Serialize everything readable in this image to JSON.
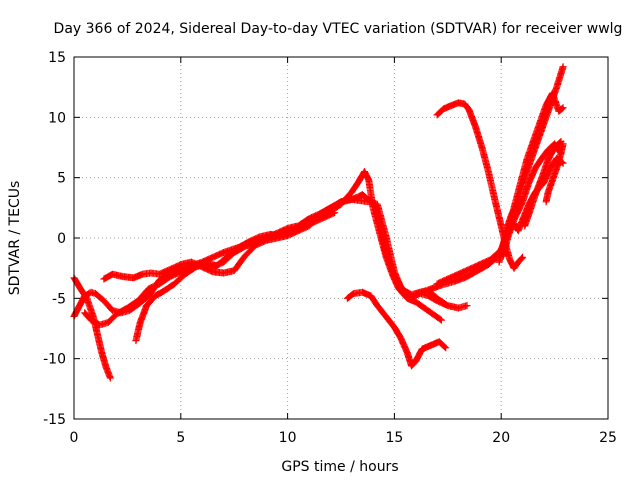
{
  "chart_data": {
    "type": "scatter",
    "title": "Day 366 of 2024, Sidereal Day-to-day VTEC variation (SDTVAR) for receiver wwlg",
    "xlabel": "GPS time / hours",
    "ylabel": "SDTVAR / TECUs",
    "xlim": [
      0,
      25
    ],
    "ylim": [
      -15,
      15
    ],
    "xticks": [
      0,
      5,
      10,
      15,
      20,
      25
    ],
    "yticks": [
      -15,
      -10,
      -5,
      0,
      5,
      10,
      15
    ],
    "xtick_labels": [
      "0",
      "5",
      "10",
      "15",
      "20",
      "25"
    ],
    "ytick_labels": [
      "-15",
      "-10",
      "-5",
      "0",
      "5",
      "10",
      "15"
    ],
    "grid": true,
    "marker": "+",
    "color": "#ff0000",
    "series": [
      {
        "x": [
          0.0,
          0.3,
          0.6,
          0.9,
          1.1,
          1.3,
          1.5,
          1.7
        ],
        "y": [
          -3.3,
          -4.2,
          -5.0,
          -6.5,
          -8.0,
          -9.5,
          -10.7,
          -11.6
        ]
      },
      {
        "x": [
          0.0,
          0.2,
          0.5,
          0.8,
          1.0,
          1.4,
          1.8,
          2.2,
          2.6,
          3.0,
          3.5,
          4.0,
          4.5,
          5.0,
          5.5,
          6.0,
          6.5,
          7.0,
          7.5,
          8.0,
          8.5,
          9.0,
          9.5,
          10.0,
          10.5,
          11.0,
          11.5,
          12.0,
          12.5,
          13.0,
          13.3,
          13.5,
          13.7,
          13.9,
          14.1,
          14.3,
          14.6,
          15.0,
          15.4,
          15.8,
          16.2,
          16.6,
          17.0,
          17.4
        ],
        "y": [
          -6.5,
          -5.8,
          -4.8,
          -4.5,
          -4.6,
          -5.2,
          -6.0,
          -6.2,
          -6.0,
          -5.5,
          -4.8,
          -3.5,
          -2.8,
          -2.6,
          -2.3,
          -2.2,
          -2.4,
          -2.0,
          -1.2,
          -0.7,
          -0.4,
          0.0,
          0.4,
          0.8,
          1.0,
          1.6,
          2.0,
          2.5,
          3.0,
          3.2,
          3.4,
          3.6,
          3.3,
          3.0,
          2.8,
          1.2,
          -1.2,
          -3.2,
          -4.3,
          -4.7,
          -4.5,
          -4.4,
          -5.0,
          -5.5
        ]
      },
      {
        "x": [
          0.5,
          0.8,
          1.2,
          1.6,
          2.0,
          2.5,
          3.0,
          3.5,
          4.0,
          4.5,
          5.0,
          5.5,
          6.0,
          6.5,
          7.0,
          7.5,
          8.0,
          8.5,
          9.0,
          9.5,
          10.0,
          10.5,
          11.0,
          11.5,
          12.0,
          12.5,
          13.0,
          13.3,
          13.6,
          13.8,
          14.0,
          14.3,
          14.6,
          14.9,
          15.2,
          15.6,
          16.0,
          16.4,
          16.8,
          17.2
        ],
        "y": [
          -6.2,
          -6.8,
          -7.2,
          -7.0,
          -6.3,
          -5.8,
          -5.2,
          -4.2,
          -3.8,
          -3.2,
          -2.8,
          -2.3,
          -2.0,
          -1.6,
          -1.2,
          -0.9,
          -0.6,
          -0.3,
          0.0,
          0.2,
          0.4,
          0.8,
          1.2,
          1.8,
          2.2,
          2.8,
          3.8,
          4.6,
          5.5,
          4.8,
          2.5,
          0.5,
          -1.5,
          -3.0,
          -4.2,
          -5.0,
          -5.3,
          -5.8,
          -6.3,
          -6.8
        ]
      },
      {
        "x": [
          1.4,
          1.8,
          2.3,
          2.8,
          3.2,
          3.6,
          4.0,
          4.5,
          5.0,
          5.5,
          6.0,
          6.5,
          7.0,
          7.5,
          8.0,
          8.5,
          9.0,
          9.5,
          10.0,
          10.5,
          11.0,
          11.5,
          12.0,
          12.5,
          13.0,
          13.4,
          13.8,
          14.2,
          14.6,
          15.0,
          15.4,
          15.8,
          16.2,
          16.6,
          17.0,
          17.5,
          18.0,
          18.4
        ],
        "y": [
          -3.4,
          -3.0,
          -3.2,
          -3.3,
          -3.0,
          -2.9,
          -3.0,
          -2.6,
          -2.2,
          -2.0,
          -2.4,
          -2.8,
          -2.9,
          -2.7,
          -1.5,
          -0.6,
          -0.2,
          0.0,
          0.2,
          0.6,
          1.0,
          1.8,
          2.4,
          3.0,
          3.2,
          3.1,
          3.0,
          2.8,
          0.2,
          -2.8,
          -4.5,
          -4.9,
          -4.6,
          -4.8,
          -5.2,
          -5.6,
          -5.8,
          -5.6
        ]
      },
      {
        "x": [
          2.9,
          3.1,
          3.4,
          3.8,
          4.2,
          4.7,
          5.2,
          5.7,
          6.2,
          6.7,
          7.2,
          7.7,
          8.2,
          8.7,
          9.2,
          9.7,
          10.2,
          10.7,
          11.2,
          11.7,
          12.2
        ],
        "y": [
          -8.5,
          -7.0,
          -5.6,
          -4.8,
          -4.4,
          -3.8,
          -3.0,
          -2.4,
          -2.1,
          -2.3,
          -1.5,
          -0.8,
          -0.3,
          0.1,
          0.3,
          0.2,
          0.5,
          0.9,
          1.3,
          1.7,
          2.1
        ]
      },
      {
        "x": [
          12.8,
          13.1,
          13.5,
          13.9,
          14.2,
          14.6,
          15.0,
          15.3,
          15.6,
          15.8,
          16.0,
          16.3,
          16.7,
          17.1,
          17.4
        ],
        "y": [
          -5.0,
          -4.6,
          -4.5,
          -4.8,
          -5.6,
          -6.5,
          -7.4,
          -8.3,
          -9.5,
          -10.6,
          -10.2,
          -9.2,
          -8.9,
          -8.6,
          -9.1
        ]
      },
      {
        "x": [
          16.0,
          16.6,
          17.2,
          17.8,
          18.4,
          19.0,
          19.4,
          19.8,
          20.1,
          20.4,
          20.7,
          21.0,
          21.4,
          21.8,
          22.2,
          22.6,
          22.9
        ],
        "y": [
          -4.6,
          -4.3,
          -3.9,
          -3.6,
          -3.2,
          -2.6,
          -2.2,
          -1.6,
          -0.6,
          0.8,
          2.6,
          4.5,
          6.5,
          8.5,
          10.5,
          12.5,
          14.2
        ]
      },
      {
        "x": [
          17.0,
          17.5,
          18.0,
          18.5,
          19.0,
          19.5,
          20.0,
          20.3,
          20.6,
          20.9,
          21.2,
          21.5,
          21.8,
          22.1,
          22.4,
          22.7,
          22.9
        ],
        "y": [
          -3.8,
          -3.4,
          -3.0,
          -2.6,
          -2.2,
          -1.8,
          -1.0,
          0.5,
          2.5,
          4.5,
          6.5,
          8.0,
          9.5,
          11.0,
          12.0,
          10.5,
          10.8
        ]
      },
      {
        "x": [
          17.0,
          17.3,
          17.7,
          18.0,
          18.3,
          18.5,
          18.8,
          19.1,
          19.4,
          19.7,
          20.0,
          20.2,
          20.4,
          20.6,
          20.8,
          21.0
        ],
        "y": [
          10.2,
          10.7,
          11.0,
          11.2,
          11.1,
          10.6,
          9.2,
          7.5,
          5.5,
          3.2,
          1.0,
          -0.5,
          -1.8,
          -2.5,
          -2.0,
          -1.6
        ]
      },
      {
        "x": [
          20.1,
          20.3,
          20.6,
          21.0,
          21.3,
          21.6,
          21.9,
          22.2,
          22.5,
          22.8
        ],
        "y": [
          -1.5,
          0.0,
          1.5,
          3.0,
          4.6,
          5.8,
          6.6,
          7.3,
          7.8,
          7.0
        ]
      },
      {
        "x": [
          20.6,
          20.8,
          21.0,
          21.3,
          21.6,
          22.0,
          22.3,
          22.6,
          22.9
        ],
        "y": [
          1.2,
          0.6,
          1.5,
          2.8,
          3.8,
          4.6,
          5.8,
          6.6,
          6.2
        ]
      },
      {
        "x": [
          21.1,
          21.3,
          21.6,
          21.9,
          22.2,
          22.5,
          22.8
        ],
        "y": [
          1.0,
          2.0,
          3.6,
          5.0,
          6.5,
          7.5,
          8.0
        ]
      },
      {
        "x": [
          22.1,
          22.2,
          22.4,
          22.6,
          22.8,
          22.9
        ],
        "y": [
          3.0,
          3.8,
          4.8,
          5.8,
          7.0,
          7.8
        ]
      },
      {
        "x": [
          19.9,
          20.1,
          20.3,
          20.5,
          20.7
        ],
        "y": [
          -2.0,
          -0.5,
          1.0,
          2.0,
          2.6
        ]
      }
    ]
  }
}
